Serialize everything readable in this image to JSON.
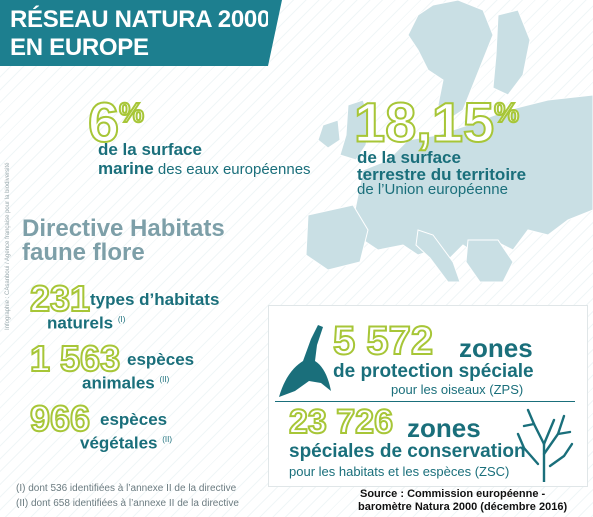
{
  "title": {
    "line1": "RÉSEAU NATURA 2000",
    "line2": "EN EUROPE"
  },
  "marine": {
    "value": "6",
    "unit": "%",
    "line1": "de la surface",
    "line2_bold": "marine",
    "line2_rest": " des eaux européennes"
  },
  "terrestre": {
    "value": "18,15",
    "unit": "%",
    "line1": "de la surface",
    "line2": "terrestre du territoire",
    "line3": "de l’Union européenne"
  },
  "habitats": {
    "heading1": "Directive Habitats",
    "heading2": "faune flore",
    "items": [
      {
        "number": "231",
        "line1": "types d’habitats",
        "line2": "naturels",
        "ref": "(I)"
      },
      {
        "number": "1 563",
        "line1": "espèces",
        "line2": "animales",
        "ref": "(II)"
      },
      {
        "number": "966",
        "line1": "espèces",
        "line2": "végétales",
        "ref": "(II)"
      }
    ],
    "notes": [
      "(I) dont 536 identifiées à l’annexe II de la directive",
      "(II) dont 658 identifiées à l’annexe II de la directive"
    ]
  },
  "zps": {
    "number": "5 572",
    "word": "zones",
    "line2": "de protection spéciale",
    "line3": "pour les oiseaux (ZPS)"
  },
  "zsc": {
    "number": "23 726",
    "word": "zones",
    "line2": "spéciales de conservation",
    "line3": "pour les habitats et les espèces (ZSC)"
  },
  "source": {
    "line1": "Source : Commission européenne -",
    "line2": "baromètre Natura 2000 (décembre 2016)"
  },
  "credit": "Infographie : CAsanboui / Agence française pour la biodiversité",
  "colors": {
    "teal": "#1d7f8f",
    "green": "#a7c637",
    "map": "#c9dfe4"
  }
}
